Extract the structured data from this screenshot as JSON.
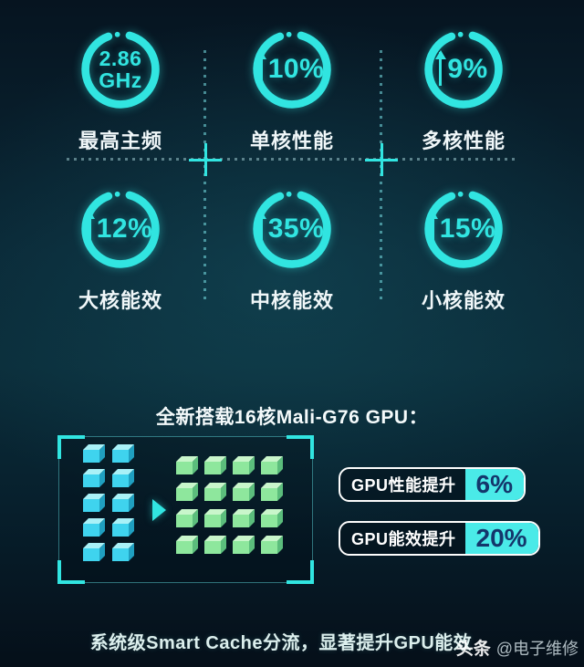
{
  "theme": {
    "accent_cyan": "#31e5e1",
    "badge_fill_cyan": "#4aeae8",
    "badge_value_color": "#14366b",
    "label_color": "#f0f7f9",
    "background_top": "#061420",
    "background_mid": "#0b2d3a",
    "background_bottom": "#050f19",
    "cube_blue": {
      "top": "#a9f1f7",
      "front": "#3fd3ee",
      "side": "#1f9fc0"
    },
    "cube_green": {
      "top": "#c9f6cb",
      "front": "#8ee79d",
      "side": "#5bbd7c"
    }
  },
  "stats": [
    {
      "id": "max-frequency",
      "line1": "2.86",
      "line2": "GHz",
      "label": "最高主频"
    },
    {
      "id": "single-core-performance",
      "value": "10%",
      "label": "单核性能",
      "arrow": "up-arrow-icon"
    },
    {
      "id": "multi-core-performance",
      "value": "9%",
      "label": "多核性能",
      "arrow": "up-arrow-icon"
    },
    {
      "id": "big-core-efficiency",
      "value": "12%",
      "label": "大核能效",
      "arrow": "up-arrow-icon"
    },
    {
      "id": "mid-core-efficiency",
      "value": "35%",
      "label": "中核能效",
      "arrow": "up-arrow-icon"
    },
    {
      "id": "small-core-efficiency",
      "value": "15%",
      "label": "小核能效",
      "arrow": "up-arrow-icon"
    }
  ],
  "gpu_section": {
    "title": "全新搭载16核Mali-G76 GPU：",
    "badges": [
      {
        "id": "gpu-performance",
        "label": "GPU性能提升",
        "value": "6%"
      },
      {
        "id": "gpu-efficiency",
        "label": "GPU能效提升",
        "value": "20%"
      }
    ],
    "diagram": {
      "before_cores": {
        "rows": 5,
        "cols": 2,
        "count": 10,
        "color_front": "#3fd3ee"
      },
      "after_cores": {
        "rows": 4,
        "cols": 4,
        "count": 16,
        "color_front": "#8ee79d"
      },
      "arrow_icon": "right-arrow-icon"
    }
  },
  "footer": {
    "text": "系统级Smart Cache分流，显著提升GPU能效"
  },
  "watermark": {
    "brand": "头条",
    "handle": "@电子维修"
  },
  "chart_data": [
    {
      "type": "gauge",
      "items": [
        {
          "label": "最高主频",
          "value": 2.86,
          "unit": "GHz"
        },
        {
          "label": "单核性能",
          "value": 10,
          "unit": "%",
          "direction": "up"
        },
        {
          "label": "多核性能",
          "value": 9,
          "unit": "%",
          "direction": "up"
        },
        {
          "label": "大核能效",
          "value": 12,
          "unit": "%",
          "direction": "up"
        },
        {
          "label": "中核能效",
          "value": 35,
          "unit": "%",
          "direction": "up"
        },
        {
          "label": "小核能效",
          "value": 15,
          "unit": "%",
          "direction": "up"
        }
      ],
      "legend_position": "below-each-ring",
      "ring_style": "cyan arc ~92% complete, gap at top with start dot"
    },
    {
      "type": "bar",
      "title": "全新搭载16核Mali-G76 GPU：",
      "categories": [
        "GPU性能提升",
        "GPU能效提升"
      ],
      "values": [
        6,
        20
      ],
      "unit": "%"
    },
    {
      "type": "diagram",
      "description": "GPU核心数对比（Mali-G76）：10核 → 16核",
      "before_count": 10,
      "after_count": 16
    }
  ]
}
